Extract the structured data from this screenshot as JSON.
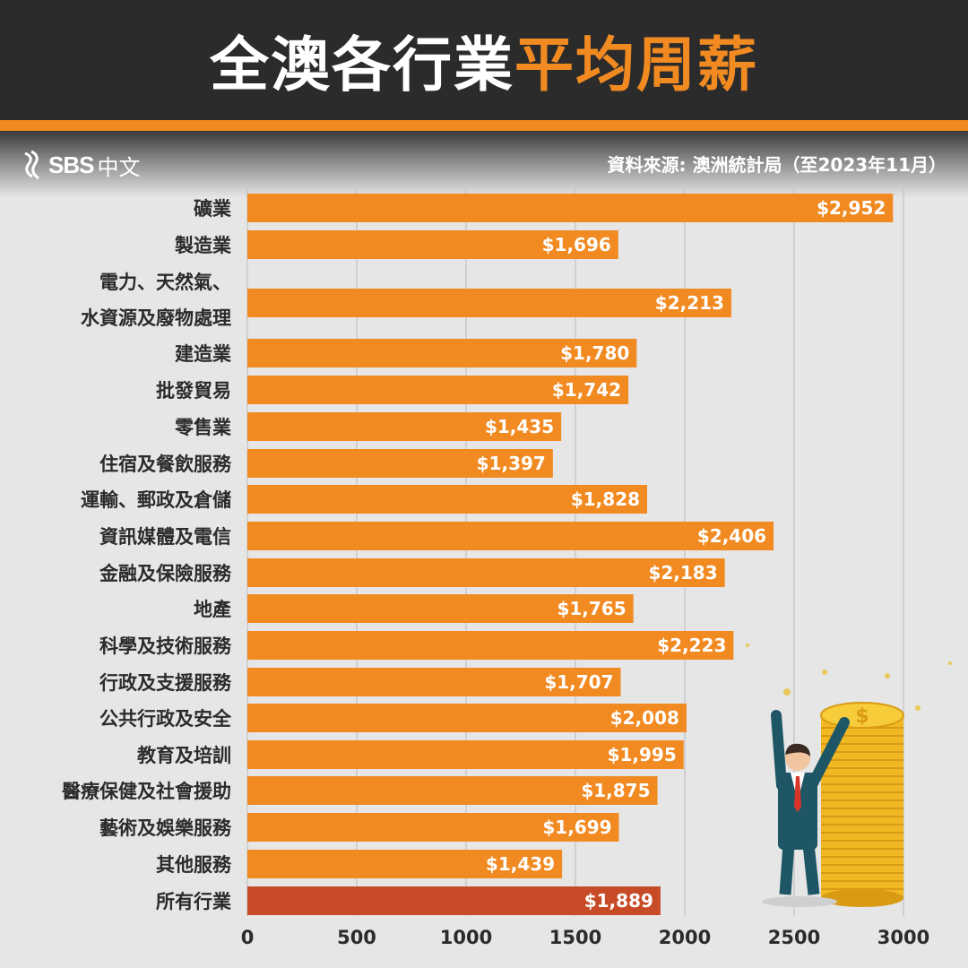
{
  "header": {
    "title_part1": "全澳各行業",
    "title_part2": "平均周薪"
  },
  "logo": {
    "brand": "SBS",
    "lang": "中文"
  },
  "source": "資料來源: 澳洲統計局（至2023年11月）",
  "colors": {
    "bar": "#f28a22",
    "highlight": "#c84b27",
    "grid": "#c8c8c8",
    "text": "#2b2b2b",
    "header_bg": "#2b2b2b"
  },
  "chart_data": {
    "type": "bar",
    "orientation": "horizontal",
    "categories": [
      [
        "礦業"
      ],
      [
        "製造業"
      ],
      [
        "電力、天然氣、",
        "水資源及廢物處理"
      ],
      [
        "建造業"
      ],
      [
        "批發貿易"
      ],
      [
        "零售業"
      ],
      [
        "住宿及餐飲服務"
      ],
      [
        "運輸、郵政及倉儲"
      ],
      [
        "資訊媒體及電信"
      ],
      [
        "金融及保險服務"
      ],
      [
        "地產"
      ],
      [
        "科學及技術服務"
      ],
      [
        "行政及支援服務"
      ],
      [
        "公共行政及安全"
      ],
      [
        "教育及培訓"
      ],
      [
        "醫療保健及社會援助"
      ],
      [
        "藝術及娛樂服務"
      ],
      [
        "其他服務"
      ],
      [
        "所有行業"
      ]
    ],
    "values": [
      2952,
      1696,
      2213,
      1780,
      1742,
      1435,
      1397,
      1828,
      2406,
      2183,
      1765,
      2223,
      1707,
      2008,
      1995,
      1875,
      1699,
      1439,
      1889
    ],
    "value_labels": [
      "$2,952",
      "$1,696",
      "$2,213",
      "$1,780",
      "$1,742",
      "$1,435",
      "$1,397",
      "$1,828",
      "$2,406",
      "$2,183",
      "$1,765",
      "$2,223",
      "$1,707",
      "$2,008",
      "$1,995",
      "$1,875",
      "$1,699",
      "$1,439",
      "$1,889"
    ],
    "highlight_index": 18,
    "xticks": [
      0,
      500,
      1000,
      1500,
      2000,
      2500,
      3000
    ],
    "xlim": [
      0,
      3000
    ],
    "grid": true
  },
  "illustration": {
    "coin_symbol": "$"
  }
}
